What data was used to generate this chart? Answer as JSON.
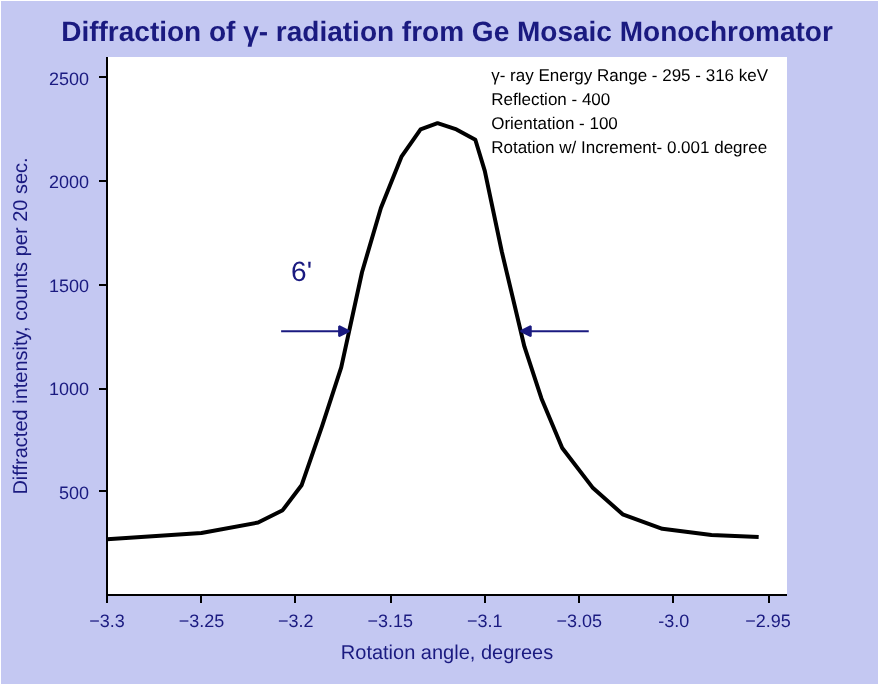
{
  "chart_data": {
    "type": "line",
    "title": "Diffraction of γ- radiation from Ge Mosaic Monochromator",
    "xlabel": "Rotation angle, degrees",
    "ylabel": "Diffracted intensity, counts per 20 sec.",
    "x": [
      -3.3,
      -3.25,
      -3.22,
      -3.207,
      -3.197,
      -3.186,
      -3.176,
      -3.165,
      -3.155,
      -3.144,
      -3.134,
      -3.125,
      -3.115,
      -3.105,
      -3.1,
      -3.091,
      -3.079,
      -3.07,
      -3.059,
      -3.043,
      -3.027,
      -3.006,
      -2.98,
      -2.955
    ],
    "series": [
      {
        "color": "#000000",
        "values": [
          270,
          300,
          350,
          410,
          530,
          820,
          1100,
          1560,
          1870,
          2120,
          2250,
          2280,
          2250,
          2200,
          2050,
          1660,
          1200,
          950,
          710,
          520,
          390,
          320,
          290,
          280
        ]
      }
    ],
    "xlim": [
      -3.3,
      -2.94
    ],
    "ylim": [
      0,
      2600
    ],
    "xticks": [
      -3.3,
      -3.25,
      -3.2,
      -3.15,
      -3.1,
      -3.05,
      {
        "value": -3.0,
        "label": "-3.0"
      },
      -2.95
    ],
    "yticks": [
      500,
      1000,
      1500,
      2000,
      2500
    ],
    "grid": false,
    "marker": "none",
    "line_style": "solid",
    "annotations": [
      "6'",
      "γ- ray Energy Range - 295 - 316 keV",
      "Reflection - 400",
      "Orientation - 100",
      "Rotation w/ Increment- 0.001 degree"
    ]
  }
}
